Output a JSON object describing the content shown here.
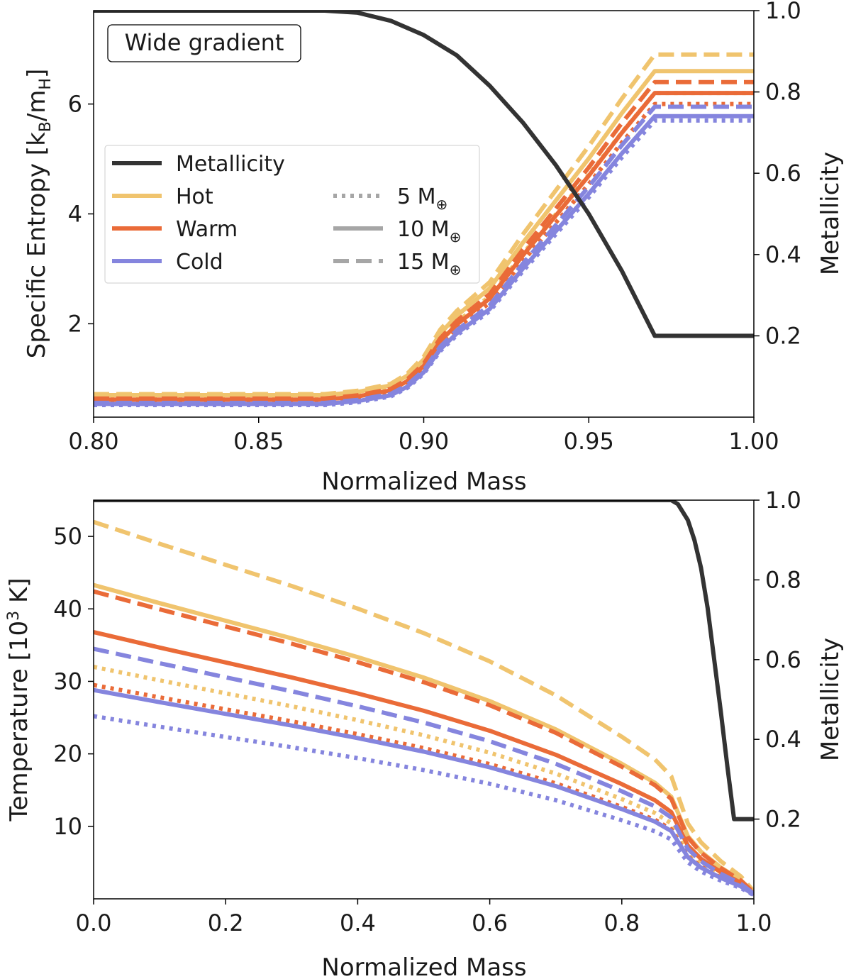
{
  "colors": {
    "metallicity": "#333333",
    "hot": "#F0C46E",
    "warm": "#EA6B38",
    "cold": "#8585DE",
    "style_key": "#a6a6a6"
  },
  "chart_data": [
    {
      "type": "line",
      "panel": "top",
      "annotation": "Wide gradient",
      "xlabel": "Normalized Mass",
      "ylabel_parts": {
        "main": "Specific Entropy [k",
        "sub1": "B",
        "mid": "/m",
        "sub2": "H",
        "end": "]"
      },
      "y2label": "Metallicity",
      "xlim": [
        0.8,
        1.0
      ],
      "ylim": [
        0.3,
        7.7
      ],
      "y2lim": [
        0.0,
        1.0
      ],
      "xticks": [
        "0.80",
        "0.85",
        "0.90",
        "0.95",
        "1.00"
      ],
      "yticks": [
        "2",
        "4",
        "6"
      ],
      "y2ticks": [
        "0.2",
        "0.4",
        "0.6",
        "0.8",
        "1.0"
      ],
      "legend": {
        "metallicity": "Metallicity",
        "hot": "Hot",
        "warm": "Warm",
        "cold": "Cold",
        "m5": "5 M",
        "m10": "10 M",
        "m15": "15 M",
        "earth_symbol": "⊕"
      },
      "metallicity": {
        "x": [
          0.8,
          0.87,
          0.88,
          0.89,
          0.9,
          0.91,
          0.92,
          0.93,
          0.94,
          0.95,
          0.96,
          0.97,
          1.0
        ],
        "y": [
          1.0,
          1.0,
          0.995,
          0.975,
          0.94,
          0.89,
          0.815,
          0.725,
          0.62,
          0.5,
          0.36,
          0.2,
          0.2
        ]
      },
      "entropy_x": [
        0.8,
        0.87,
        0.88,
        0.89,
        0.895,
        0.9,
        0.905,
        0.91,
        0.92,
        0.93,
        0.94,
        0.95,
        0.96,
        0.97,
        1.0
      ],
      "entropy_shape": [
        0.0,
        0.0,
        0.01,
        0.03,
        0.06,
        0.11,
        0.19,
        0.245,
        0.33,
        0.47,
        0.6,
        0.73,
        0.87,
        1.0,
        1.0
      ],
      "series": [
        {
          "name": "Hot 5",
          "temp": "hot",
          "mass": 5,
          "base": 0.68,
          "top": 6.2
        },
        {
          "name": "Hot 10",
          "temp": "hot",
          "mass": 10,
          "base": 0.7,
          "top": 6.6
        },
        {
          "name": "Hot 15",
          "temp": "hot",
          "mass": 15,
          "base": 0.72,
          "top": 6.9
        },
        {
          "name": "Warm 5",
          "temp": "warm",
          "mass": 5,
          "base": 0.6,
          "top": 6.0
        },
        {
          "name": "Warm 10",
          "temp": "warm",
          "mass": 10,
          "base": 0.62,
          "top": 6.2
        },
        {
          "name": "Warm 15",
          "temp": "warm",
          "mass": 15,
          "base": 0.64,
          "top": 6.4
        },
        {
          "name": "Cold 5",
          "temp": "cold",
          "mass": 5,
          "base": 0.52,
          "top": 5.7
        },
        {
          "name": "Cold 10",
          "temp": "cold",
          "mass": 10,
          "base": 0.54,
          "top": 5.78
        },
        {
          "name": "Cold 15",
          "temp": "cold",
          "mass": 15,
          "base": 0.56,
          "top": 5.95
        }
      ]
    },
    {
      "type": "line",
      "panel": "bottom",
      "xlabel": "Normalized Mass",
      "ylabel_parts": {
        "main": "Temperature [10",
        "sup": "3",
        "end": " K]"
      },
      "y2label": "Metallicity",
      "xlim": [
        0.0,
        1.0
      ],
      "ylim": [
        0.0,
        55.0
      ],
      "y2lim": [
        0.0,
        1.0
      ],
      "xticks": [
        "0.0",
        "0.2",
        "0.4",
        "0.6",
        "0.8",
        "1.0"
      ],
      "yticks": [
        "10",
        "20",
        "30",
        "40",
        "50"
      ],
      "y2ticks": [
        "0.2",
        "0.4",
        "0.6",
        "0.8",
        "1.0"
      ],
      "metallicity": {
        "x": [
          0.0,
          0.875,
          0.885,
          0.9,
          0.91,
          0.92,
          0.93,
          0.94,
          0.95,
          0.96,
          0.97,
          1.0
        ],
        "y": [
          1.0,
          1.0,
          0.99,
          0.95,
          0.9,
          0.83,
          0.73,
          0.6,
          0.47,
          0.33,
          0.2,
          0.2
        ]
      },
      "temp_x": [
        0.0,
        0.1,
        0.2,
        0.3,
        0.4,
        0.5,
        0.6,
        0.7,
        0.8,
        0.85,
        0.875,
        0.9,
        0.92,
        0.95,
        0.98,
        1.0
      ],
      "temp_shape": [
        1.0,
        0.942,
        0.886,
        0.83,
        0.77,
        0.705,
        0.63,
        0.54,
        0.43,
        0.37,
        0.325,
        0.2,
        0.15,
        0.1,
        0.06,
        0.02
      ],
      "series": [
        {
          "name": "Hot 5",
          "temp": "hot",
          "mass": 5,
          "t0": 32.0
        },
        {
          "name": "Hot 10",
          "temp": "hot",
          "mass": 10,
          "t0": 43.3
        },
        {
          "name": "Hot 15",
          "temp": "hot",
          "mass": 15,
          "t0": 52.0
        },
        {
          "name": "Warm 5",
          "temp": "warm",
          "mass": 5,
          "t0": 29.5
        },
        {
          "name": "Warm 10",
          "temp": "warm",
          "mass": 10,
          "t0": 36.8
        },
        {
          "name": "Warm 15",
          "temp": "warm",
          "mass": 15,
          "t0": 42.4
        },
        {
          "name": "Cold 5",
          "temp": "cold",
          "mass": 5,
          "t0": 25.2
        },
        {
          "name": "Cold 10",
          "temp": "cold",
          "mass": 10,
          "t0": 28.8
        },
        {
          "name": "Cold 15",
          "temp": "cold",
          "mass": 15,
          "t0": 34.5
        }
      ]
    }
  ]
}
